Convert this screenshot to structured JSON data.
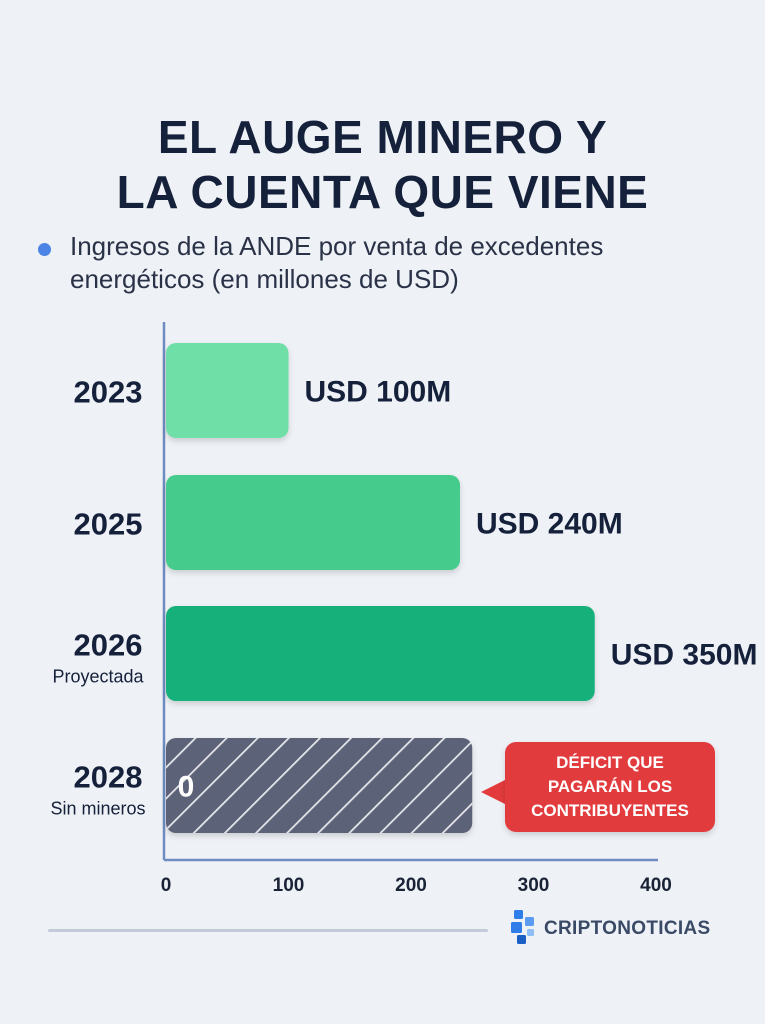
{
  "title_line1": "EL AUGE MINERO Y",
  "title_line2": "LA CUENTA QUE VIENE",
  "subtitle_line1": "Ingresos de la ANDE por venta de excedentes",
  "subtitle_line2": "energéticos (en millones de USD)",
  "brand": "CRIPTONOTICIAS",
  "colors": {
    "bar_light": "#6fdfa7",
    "bar_mid": "#45cc8c",
    "bar_dark": "#17b07a",
    "bar_deficit": "#5c6478",
    "callout": "#e23a3d",
    "axis": "#6e8cc0",
    "brand": "#2f7de8"
  },
  "chart_data": {
    "type": "bar",
    "orientation": "horizontal",
    "categories": [
      "2023",
      "2025",
      "2026",
      "2028"
    ],
    "category_sublabels": [
      "",
      "",
      "Proyectada",
      "Sin mineros"
    ],
    "values": [
      100,
      240,
      350,
      0
    ],
    "data_labels": [
      "USD 100M",
      "USD 240M",
      "USD 350M",
      "0"
    ],
    "xlim": [
      0,
      400
    ],
    "xticks": [
      0,
      100,
      200,
      300,
      400
    ],
    "deficit_extent": 250,
    "callout": [
      "DÉFICIT QUE",
      "PAGARÁN LOS",
      "CONTRIBUYENTES"
    ],
    "grid": false
  }
}
